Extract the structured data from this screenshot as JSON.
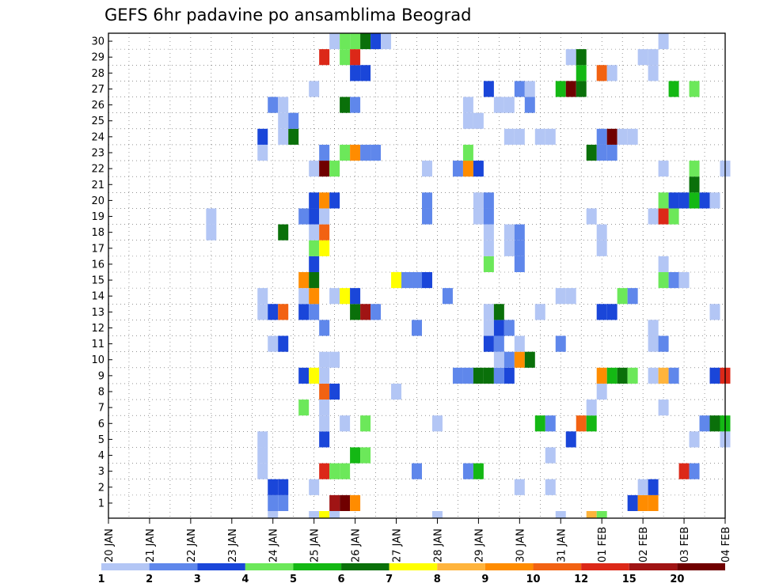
{
  "chart_data": {
    "type": "heatmap",
    "title": "GEFS 6hr padavine po ansamblima Beograd",
    "xlabel": "",
    "ylabel": "",
    "x_tick_labels": [
      "20 JAN",
      "21 JAN",
      "22 JAN",
      "23 JAN",
      "24 JAN",
      "25 JAN",
      "26 JAN",
      "27 JAN",
      "28 JAN",
      "29 JAN",
      "30 JAN",
      "31 JAN",
      "01 FEB",
      "02 FEB",
      "03 FEB",
      "04 FEB"
    ],
    "y_tick_labels": [
      "1",
      "2",
      "3",
      "4",
      "5",
      "6",
      "7",
      "8",
      "9",
      "10",
      "11",
      "12",
      "13",
      "14",
      "15",
      "16",
      "17",
      "18",
      "19",
      "20",
      "21",
      "22",
      "23",
      "24",
      "25",
      "26",
      "27",
      "28",
      "29",
      "30"
    ],
    "x_range_days": [
      0,
      15
    ],
    "y_range_members": [
      0,
      30
    ],
    "grid": true,
    "colorbar": {
      "levels": [
        "1",
        "2",
        "3",
        "4",
        "5",
        "6",
        "7",
        "8",
        "9",
        "10",
        "12",
        "15",
        "20"
      ],
      "colors": [
        "#b3c6f5",
        "#5f87eb",
        "#1a46d9",
        "#6ce85a",
        "#14b814",
        "#0a700a",
        "#ffff00",
        "#ffb43c",
        "#ff8c00",
        "#f26212",
        "#dc2818",
        "#a01414",
        "#700000"
      ]
    },
    "cell_value_units": "category index into colorbar (0 = 1-2 mm, 12 = >20 mm)",
    "cells": [
      [
        4.0,
        1,
        1
      ],
      [
        4.25,
        1,
        1
      ],
      [
        5.5,
        1,
        11
      ],
      [
        5.75,
        1,
        12
      ],
      [
        6.0,
        1,
        8
      ],
      [
        12.75,
        1,
        2
      ],
      [
        13.0,
        1,
        8
      ],
      [
        13.25,
        1,
        8
      ],
      [
        4.0,
        2,
        2
      ],
      [
        4.25,
        2,
        2
      ],
      [
        5.0,
        2,
        0
      ],
      [
        10.0,
        2,
        0
      ],
      [
        10.75,
        2,
        0
      ],
      [
        13.0,
        2,
        0
      ],
      [
        13.25,
        2,
        2
      ],
      [
        3.75,
        3,
        0
      ],
      [
        5.25,
        3,
        10
      ],
      [
        5.5,
        3,
        3
      ],
      [
        5.75,
        3,
        3
      ],
      [
        7.5,
        3,
        1
      ],
      [
        8.75,
        3,
        1
      ],
      [
        9.0,
        3,
        4
      ],
      [
        14.0,
        3,
        10
      ],
      [
        14.25,
        3,
        1
      ],
      [
        3.75,
        4,
        0
      ],
      [
        6.0,
        4,
        4
      ],
      [
        6.25,
        4,
        3
      ],
      [
        10.75,
        4,
        0
      ],
      [
        3.75,
        5,
        0
      ],
      [
        5.25,
        5,
        2
      ],
      [
        11.25,
        5,
        2
      ],
      [
        14.25,
        5,
        0
      ],
      [
        15.0,
        5,
        0
      ],
      [
        5.25,
        6,
        0
      ],
      [
        5.75,
        6,
        0
      ],
      [
        6.25,
        6,
        3
      ],
      [
        8.0,
        6,
        0
      ],
      [
        10.5,
        6,
        4
      ],
      [
        10.75,
        6,
        1
      ],
      [
        11.5,
        6,
        9
      ],
      [
        11.75,
        6,
        4
      ],
      [
        14.5,
        6,
        1
      ],
      [
        14.75,
        6,
        5
      ],
      [
        15.0,
        6,
        4
      ],
      [
        4.75,
        7,
        3
      ],
      [
        5.25,
        7,
        0
      ],
      [
        11.75,
        7,
        0
      ],
      [
        13.5,
        7,
        0
      ],
      [
        5.25,
        8,
        9
      ],
      [
        5.5,
        8,
        2
      ],
      [
        7.0,
        8,
        0
      ],
      [
        12.0,
        8,
        0
      ],
      [
        4.75,
        9,
        2
      ],
      [
        5.0,
        9,
        6
      ],
      [
        5.25,
        9,
        0
      ],
      [
        8.5,
        9,
        1
      ],
      [
        8.75,
        9,
        1
      ],
      [
        9.0,
        9,
        5
      ],
      [
        9.25,
        9,
        5
      ],
      [
        9.5,
        9,
        1
      ],
      [
        9.75,
        9,
        2
      ],
      [
        12.0,
        9,
        8
      ],
      [
        12.25,
        9,
        4
      ],
      [
        12.5,
        9,
        5
      ],
      [
        12.75,
        9,
        3
      ],
      [
        13.25,
        9,
        0
      ],
      [
        13.5,
        9,
        7
      ],
      [
        13.75,
        9,
        1
      ],
      [
        14.75,
        9,
        2
      ],
      [
        15.0,
        9,
        10
      ],
      [
        5.25,
        10,
        0
      ],
      [
        5.5,
        10,
        0
      ],
      [
        9.5,
        10,
        0
      ],
      [
        9.75,
        10,
        1
      ],
      [
        10.0,
        10,
        8
      ],
      [
        10.25,
        10,
        5
      ],
      [
        4.0,
        11,
        0
      ],
      [
        4.25,
        11,
        2
      ],
      [
        9.25,
        11,
        2
      ],
      [
        9.5,
        11,
        1
      ],
      [
        10.0,
        11,
        0
      ],
      [
        11.0,
        11,
        1
      ],
      [
        13.25,
        11,
        0
      ],
      [
        13.5,
        11,
        1
      ],
      [
        5.25,
        12,
        1
      ],
      [
        7.5,
        12,
        1
      ],
      [
        9.25,
        12,
        0
      ],
      [
        9.5,
        12,
        2
      ],
      [
        9.75,
        12,
        1
      ],
      [
        13.25,
        12,
        0
      ],
      [
        13.25,
        12,
        0
      ],
      [
        3.75,
        13,
        0
      ],
      [
        4.0,
        13,
        2
      ],
      [
        4.25,
        13,
        9
      ],
      [
        4.75,
        13,
        2
      ],
      [
        5.0,
        13,
        1
      ],
      [
        6.0,
        13,
        5
      ],
      [
        6.25,
        13,
        11
      ],
      [
        6.5,
        13,
        1
      ],
      [
        9.25,
        13,
        0
      ],
      [
        9.5,
        13,
        5
      ],
      [
        10.5,
        13,
        0
      ],
      [
        12.0,
        13,
        2
      ],
      [
        12.25,
        13,
        2
      ],
      [
        14.75,
        13,
        0
      ],
      [
        3.75,
        14,
        0
      ],
      [
        4.75,
        14,
        0
      ],
      [
        5.0,
        14,
        8
      ],
      [
        5.5,
        14,
        0
      ],
      [
        5.75,
        14,
        6
      ],
      [
        6.0,
        14,
        2
      ],
      [
        8.25,
        14,
        1
      ],
      [
        11.0,
        14,
        0
      ],
      [
        11.25,
        14,
        0
      ],
      [
        12.5,
        14,
        3
      ],
      [
        12.75,
        14,
        1
      ],
      [
        4.75,
        15,
        8
      ],
      [
        5.0,
        15,
        5
      ],
      [
        7.0,
        15,
        6
      ],
      [
        7.25,
        15,
        1
      ],
      [
        7.5,
        15,
        1
      ],
      [
        7.75,
        15,
        2
      ],
      [
        13.5,
        15,
        3
      ],
      [
        13.75,
        15,
        1
      ],
      [
        14.0,
        15,
        0
      ],
      [
        5.0,
        16,
        2
      ],
      [
        9.25,
        16,
        3
      ],
      [
        10.0,
        16,
        1
      ],
      [
        13.5,
        16,
        0
      ],
      [
        5.0,
        17,
        3
      ],
      [
        5.25,
        17,
        6
      ],
      [
        9.25,
        17,
        0
      ],
      [
        9.75,
        17,
        0
      ],
      [
        10.0,
        17,
        1
      ],
      [
        12.0,
        17,
        0
      ],
      [
        2.5,
        18,
        0
      ],
      [
        4.25,
        18,
        5
      ],
      [
        5.0,
        18,
        0
      ],
      [
        5.25,
        18,
        9
      ],
      [
        9.25,
        18,
        0
      ],
      [
        9.75,
        18,
        0
      ],
      [
        10.0,
        18,
        1
      ],
      [
        12.0,
        18,
        0
      ],
      [
        2.5,
        19,
        0
      ],
      [
        4.75,
        19,
        1
      ],
      [
        5.0,
        19,
        2
      ],
      [
        5.25,
        19,
        0
      ],
      [
        7.75,
        19,
        1
      ],
      [
        9.0,
        19,
        0
      ],
      [
        9.25,
        19,
        1
      ],
      [
        11.75,
        19,
        0
      ],
      [
        13.25,
        19,
        0
      ],
      [
        13.5,
        19,
        10
      ],
      [
        13.75,
        19,
        3
      ],
      [
        5.0,
        20,
        2
      ],
      [
        5.25,
        20,
        8
      ],
      [
        5.5,
        20,
        2
      ],
      [
        7.75,
        20,
        1
      ],
      [
        9.0,
        20,
        0
      ],
      [
        9.25,
        20,
        1
      ],
      [
        13.5,
        20,
        3
      ],
      [
        13.75,
        20,
        2
      ],
      [
        14.0,
        20,
        2
      ],
      [
        14.25,
        20,
        4
      ],
      [
        14.5,
        20,
        2
      ],
      [
        14.75,
        20,
        0
      ],
      [
        14.25,
        21,
        5
      ],
      [
        5.0,
        22,
        0
      ],
      [
        5.25,
        22,
        12
      ],
      [
        5.5,
        22,
        3
      ],
      [
        7.75,
        22,
        0
      ],
      [
        8.5,
        22,
        1
      ],
      [
        8.75,
        22,
        8
      ],
      [
        9.0,
        22,
        2
      ],
      [
        13.5,
        22,
        0
      ],
      [
        14.25,
        22,
        3
      ],
      [
        15.0,
        22,
        0
      ],
      [
        3.75,
        23,
        0
      ],
      [
        5.25,
        23,
        1
      ],
      [
        5.75,
        23,
        3
      ],
      [
        6.0,
        23,
        8
      ],
      [
        6.25,
        23,
        1
      ],
      [
        6.5,
        23,
        1
      ],
      [
        8.75,
        23,
        3
      ],
      [
        11.75,
        23,
        5
      ],
      [
        12.0,
        23,
        1
      ],
      [
        12.25,
        23,
        1
      ],
      [
        3.75,
        24,
        2
      ],
      [
        4.25,
        24,
        0
      ],
      [
        4.5,
        24,
        5
      ],
      [
        9.75,
        24,
        0
      ],
      [
        10.0,
        24,
        0
      ],
      [
        10.5,
        24,
        0
      ],
      [
        10.75,
        24,
        0
      ],
      [
        12.0,
        24,
        1
      ],
      [
        12.25,
        24,
        12
      ],
      [
        12.5,
        24,
        0
      ],
      [
        12.75,
        24,
        0
      ],
      [
        4.25,
        25,
        0
      ],
      [
        4.5,
        25,
        1
      ],
      [
        8.75,
        25,
        0
      ],
      [
        9.0,
        25,
        0
      ],
      [
        4.0,
        26,
        1
      ],
      [
        4.25,
        26,
        0
      ],
      [
        5.75,
        26,
        5
      ],
      [
        6.0,
        26,
        1
      ],
      [
        8.75,
        26,
        0
      ],
      [
        9.5,
        26,
        0
      ],
      [
        9.75,
        26,
        0
      ],
      [
        10.25,
        26,
        1
      ],
      [
        5.0,
        27,
        0
      ],
      [
        9.25,
        27,
        2
      ],
      [
        10.0,
        27,
        1
      ],
      [
        10.25,
        27,
        0
      ],
      [
        11.0,
        27,
        4
      ],
      [
        11.25,
        27,
        12
      ],
      [
        11.5,
        27,
        5
      ],
      [
        13.75,
        27,
        4
      ],
      [
        14.25,
        27,
        3
      ],
      [
        6.0,
        28,
        2
      ],
      [
        6.25,
        28,
        2
      ],
      [
        11.5,
        28,
        4
      ],
      [
        12.0,
        28,
        9
      ],
      [
        12.25,
        28,
        0
      ],
      [
        13.25,
        28,
        0
      ],
      [
        5.25,
        29,
        10
      ],
      [
        5.75,
        29,
        3
      ],
      [
        6.0,
        29,
        10
      ],
      [
        11.25,
        29,
        0
      ],
      [
        11.5,
        29,
        5
      ],
      [
        13.0,
        29,
        0
      ],
      [
        13.25,
        29,
        0
      ],
      [
        5.5,
        30,
        0
      ],
      [
        5.75,
        30,
        3
      ],
      [
        6.0,
        30,
        3
      ],
      [
        6.25,
        30,
        5
      ],
      [
        6.5,
        30,
        2
      ],
      [
        6.75,
        30,
        0
      ],
      [
        13.5,
        30,
        0
      ]
    ],
    "bottom_strip": [
      [
        3.0,
        "#ffffff"
      ],
      [
        4.0,
        "#b3c6f5"
      ],
      [
        5.0,
        "#b3c6f5"
      ],
      [
        5.25,
        "#ffff00"
      ],
      [
        5.5,
        "#b3c6f5"
      ],
      [
        8.0,
        "#b3c6f5"
      ],
      [
        11.0,
        "#b3c6f5"
      ],
      [
        11.75,
        "#ffb43c"
      ],
      [
        12.0,
        "#6ce85a"
      ]
    ]
  }
}
